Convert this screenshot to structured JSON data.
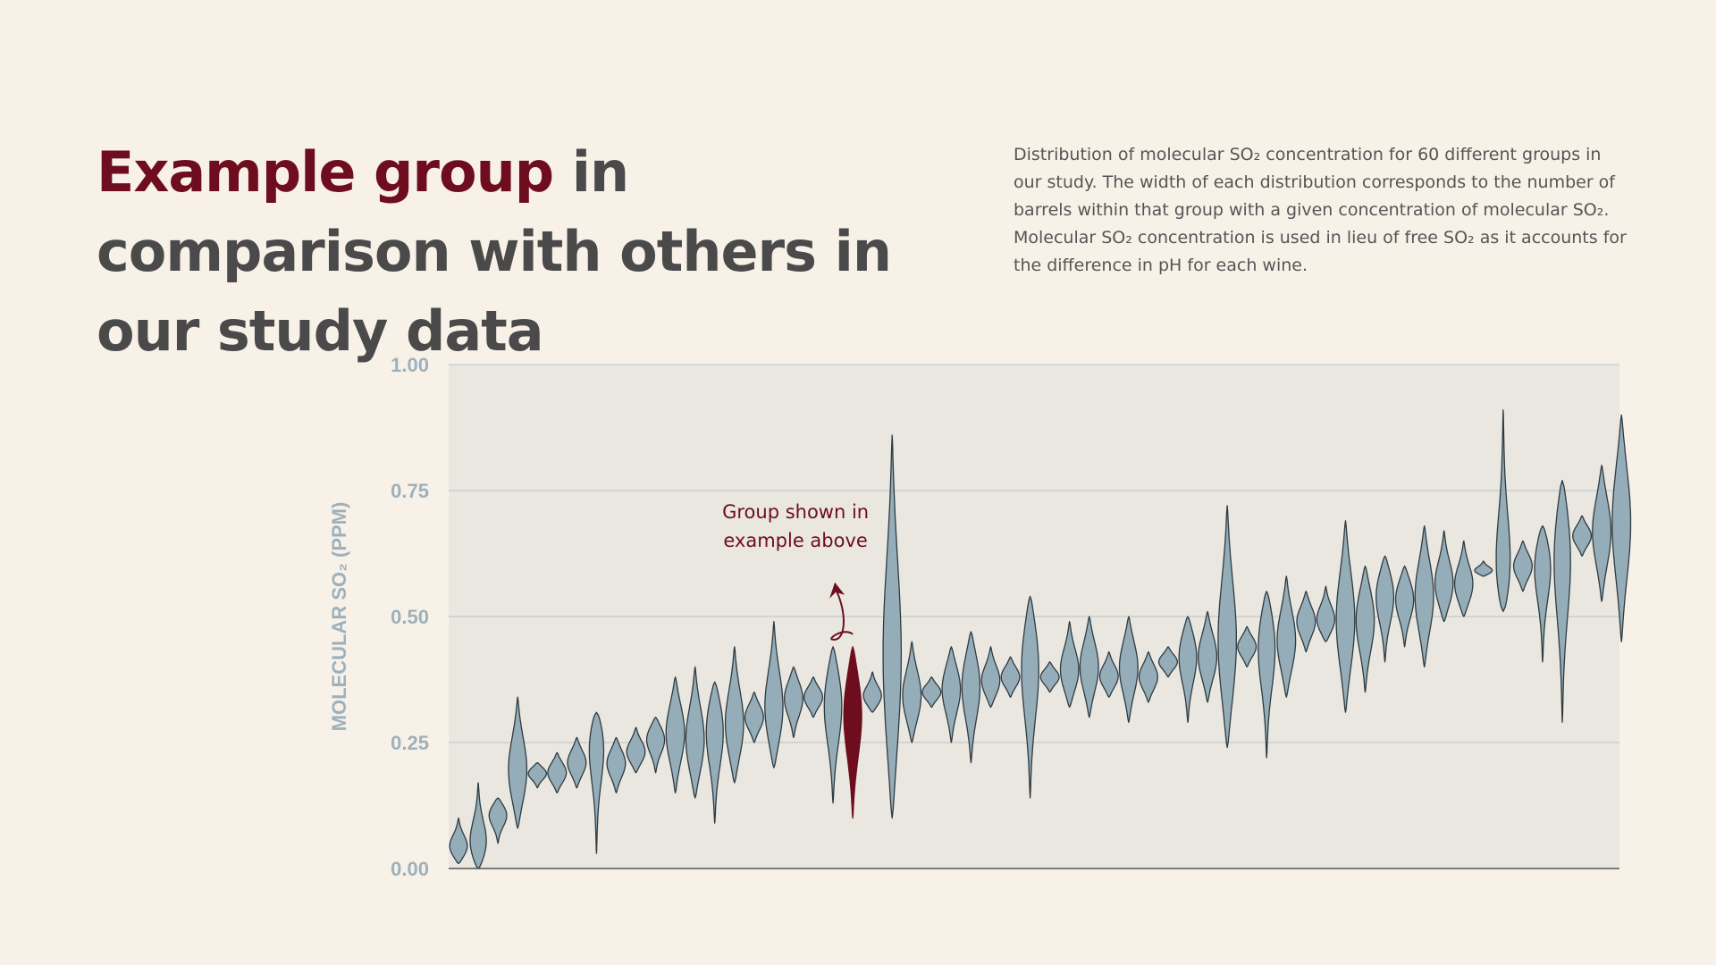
{
  "heading": {
    "highlight": "Example group",
    "rest": " in comparison with others in our study data"
  },
  "description": "Distribution of molecular SO₂ concentration for 60 different groups in our study. The width of each distribution corresponds to the number of barrels within that group with a given concentration of molecular SO₂. Molecular SO₂ concentration is used in lieu of free SO₂ as it accounts for the difference in pH for each wine.",
  "colors": {
    "background": "#f8f1e8",
    "plot_background": "#eae7e1",
    "violin_fill": "#95adb9",
    "highlight": "#6e0d1e",
    "axis_label": "#9cb1bc",
    "title_text": "#4a4a4a"
  },
  "chart_data": {
    "type": "violin",
    "ylabel": "MOLECULAR SO₂ (PPM)",
    "ylim": [
      0,
      1
    ],
    "yticks": [
      "0.00",
      "0.25",
      "0.50",
      "0.75",
      "1.00"
    ],
    "ytick_values": [
      0,
      0.25,
      0.5,
      0.75,
      1.0
    ],
    "grid": true,
    "group_count": 60,
    "highlight_index": 20,
    "annotation": {
      "lines": [
        "Group shown in",
        "example above"
      ],
      "target_index": 20
    },
    "groups": [
      {
        "min": 0.01,
        "max": 0.1,
        "median": 0.04
      },
      {
        "min": 0.0,
        "max": 0.17,
        "median": 0.04
      },
      {
        "min": 0.05,
        "max": 0.14,
        "median": 0.11
      },
      {
        "min": 0.08,
        "max": 0.34,
        "median": 0.19
      },
      {
        "min": 0.16,
        "max": 0.21,
        "median": 0.19
      },
      {
        "min": 0.15,
        "max": 0.23,
        "median": 0.19
      },
      {
        "min": 0.16,
        "max": 0.26,
        "median": 0.21
      },
      {
        "min": 0.03,
        "max": 0.31,
        "median": 0.27
      },
      {
        "min": 0.15,
        "max": 0.26,
        "median": 0.21
      },
      {
        "min": 0.19,
        "max": 0.28,
        "median": 0.23
      },
      {
        "min": 0.19,
        "max": 0.3,
        "median": 0.26
      },
      {
        "min": 0.15,
        "max": 0.38,
        "median": 0.27
      },
      {
        "min": 0.14,
        "max": 0.4,
        "median": 0.25
      },
      {
        "min": 0.09,
        "max": 0.37,
        "median": 0.29
      },
      {
        "min": 0.17,
        "max": 0.44,
        "median": 0.28
      },
      {
        "min": 0.25,
        "max": 0.35,
        "median": 0.3
      },
      {
        "min": 0.2,
        "max": 0.49,
        "median": 0.31
      },
      {
        "min": 0.26,
        "max": 0.4,
        "median": 0.34
      },
      {
        "min": 0.3,
        "max": 0.38,
        "median": 0.34
      },
      {
        "min": 0.13,
        "max": 0.44,
        "median": 0.34
      },
      {
        "min": 0.1,
        "max": 0.44,
        "median": 0.32
      },
      {
        "min": 0.31,
        "max": 0.39,
        "median": 0.34
      },
      {
        "min": 0.1,
        "max": 0.86,
        "median": 0.4
      },
      {
        "min": 0.25,
        "max": 0.45,
        "median": 0.34
      },
      {
        "min": 0.32,
        "max": 0.38,
        "median": 0.35
      },
      {
        "min": 0.25,
        "max": 0.44,
        "median": 0.36
      },
      {
        "min": 0.21,
        "max": 0.47,
        "median": 0.37
      },
      {
        "min": 0.32,
        "max": 0.44,
        "median": 0.37
      },
      {
        "min": 0.34,
        "max": 0.42,
        "median": 0.38
      },
      {
        "min": 0.14,
        "max": 0.54,
        "median": 0.42
      },
      {
        "min": 0.35,
        "max": 0.41,
        "median": 0.38
      },
      {
        "min": 0.32,
        "max": 0.49,
        "median": 0.39
      },
      {
        "min": 0.3,
        "max": 0.5,
        "median": 0.4
      },
      {
        "min": 0.34,
        "max": 0.43,
        "median": 0.38
      },
      {
        "min": 0.29,
        "max": 0.5,
        "median": 0.4
      },
      {
        "min": 0.33,
        "max": 0.43,
        "median": 0.38
      },
      {
        "min": 0.38,
        "max": 0.44,
        "median": 0.41
      },
      {
        "min": 0.29,
        "max": 0.5,
        "median": 0.43
      },
      {
        "min": 0.33,
        "max": 0.51,
        "median": 0.42
      },
      {
        "min": 0.24,
        "max": 0.72,
        "median": 0.44
      },
      {
        "min": 0.4,
        "max": 0.48,
        "median": 0.44
      },
      {
        "min": 0.22,
        "max": 0.55,
        "median": 0.46
      },
      {
        "min": 0.34,
        "max": 0.58,
        "median": 0.45
      },
      {
        "min": 0.43,
        "max": 0.55,
        "median": 0.49
      },
      {
        "min": 0.45,
        "max": 0.56,
        "median": 0.49
      },
      {
        "min": 0.31,
        "max": 0.69,
        "median": 0.49
      },
      {
        "min": 0.35,
        "max": 0.6,
        "median": 0.5
      },
      {
        "min": 0.41,
        "max": 0.62,
        "median": 0.55
      },
      {
        "min": 0.44,
        "max": 0.6,
        "median": 0.54
      },
      {
        "min": 0.4,
        "max": 0.68,
        "median": 0.54
      },
      {
        "min": 0.49,
        "max": 0.67,
        "median": 0.56
      },
      {
        "min": 0.5,
        "max": 0.65,
        "median": 0.56
      },
      {
        "min": 0.58,
        "max": 0.61,
        "median": 0.59
      },
      {
        "min": 0.51,
        "max": 0.91,
        "median": 0.56
      },
      {
        "min": 0.55,
        "max": 0.65,
        "median": 0.6
      },
      {
        "min": 0.41,
        "max": 0.68,
        "median": 0.62
      },
      {
        "min": 0.29,
        "max": 0.77,
        "median": 0.65
      },
      {
        "min": 0.62,
        "max": 0.7,
        "median": 0.66
      },
      {
        "min": 0.53,
        "max": 0.8,
        "median": 0.67
      },
      {
        "min": 0.45,
        "max": 0.9,
        "median": 0.69
      }
    ]
  }
}
